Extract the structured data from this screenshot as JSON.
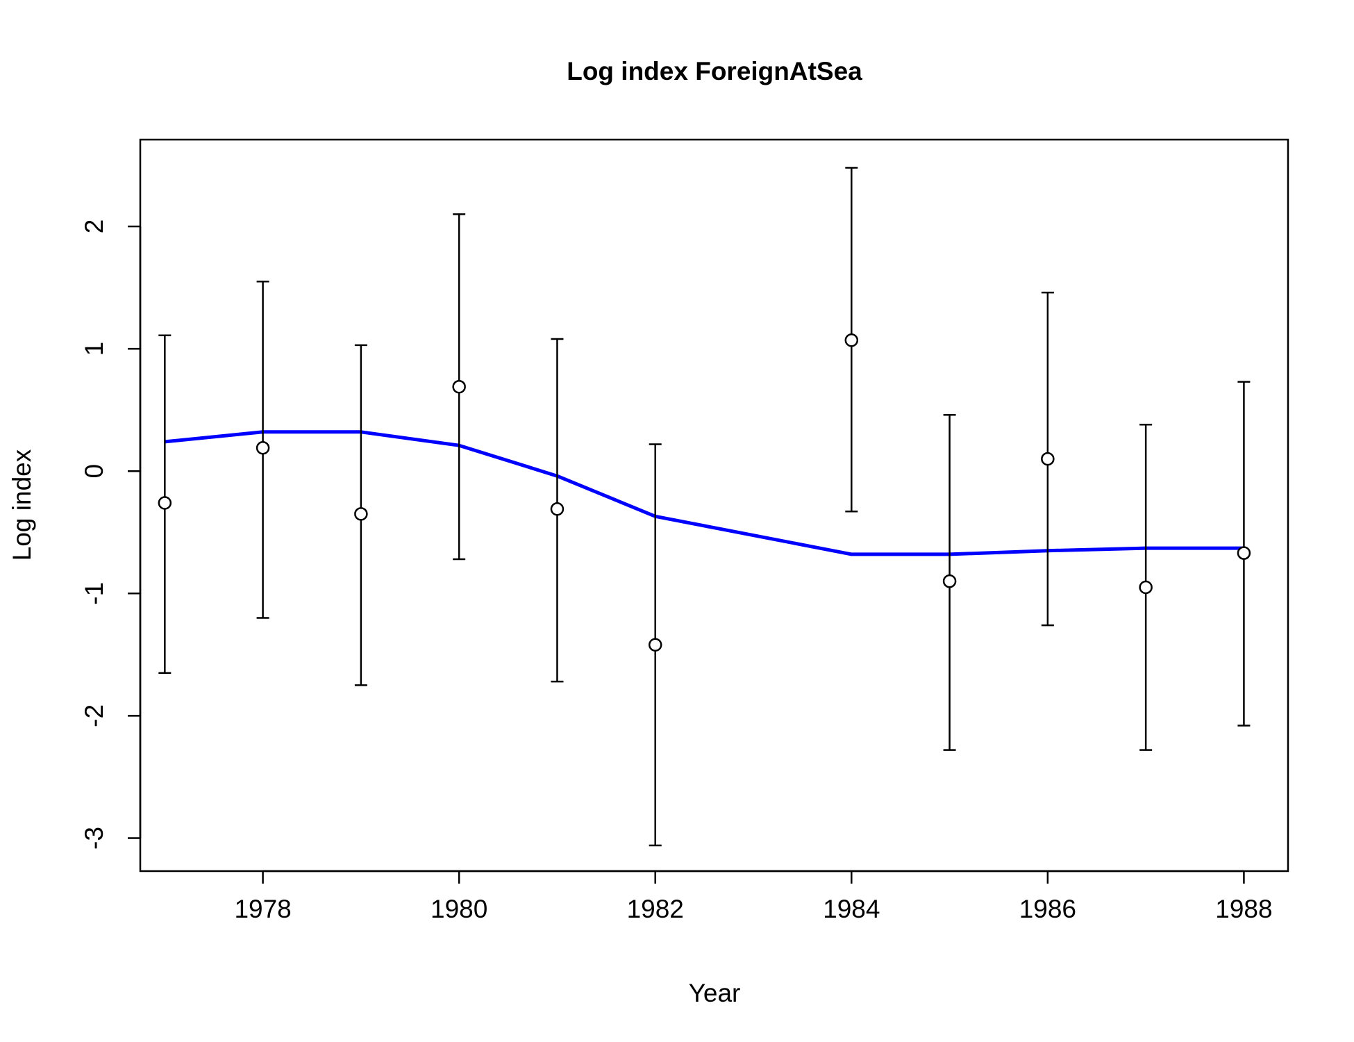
{
  "chart_data": {
    "type": "scatter",
    "title": "Log index ForeignAtSea",
    "xlabel": "Year",
    "ylabel": "Log index",
    "xlim": [
      1976.75,
      1988.45
    ],
    "ylim": [
      -3.27,
      2.71
    ],
    "x_ticks": [
      1978,
      1980,
      1982,
      1984,
      1986,
      1988
    ],
    "y_ticks": [
      -3,
      -2,
      -1,
      0,
      1,
      2
    ],
    "x_tick_labels": [
      "1978",
      "1980",
      "1982",
      "1984",
      "1986",
      "1988"
    ],
    "y_tick_labels": [
      "-3",
      "-2",
      "-1",
      "0",
      "1",
      "2"
    ],
    "grid": false,
    "legend": "none",
    "observed": {
      "x": [
        1977,
        1978,
        1979,
        1980,
        1981,
        1982,
        1984,
        1985,
        1986,
        1987,
        1988
      ],
      "y": [
        -0.26,
        0.19,
        -0.35,
        0.69,
        -0.31,
        -1.42,
        1.07,
        -0.9,
        0.1,
        -0.95,
        -0.67
      ],
      "lower": [
        -1.65,
        -1.2,
        -1.75,
        -0.72,
        -1.72,
        -3.06,
        -0.33,
        -2.28,
        -1.26,
        -2.28,
        -2.08
      ],
      "upper": [
        1.11,
        1.55,
        1.03,
        2.1,
        1.08,
        0.22,
        2.48,
        0.46,
        1.46,
        0.38,
        0.73
      ],
      "color": "#000000"
    },
    "fitted": {
      "x": [
        1977,
        1978,
        1979,
        1980,
        1981,
        1982,
        1984,
        1985,
        1986,
        1987,
        1988
      ],
      "y": [
        0.24,
        0.32,
        0.32,
        0.21,
        -0.04,
        -0.37,
        -0.68,
        -0.68,
        -0.65,
        -0.63,
        -0.63
      ],
      "color": "#0000ff"
    }
  }
}
